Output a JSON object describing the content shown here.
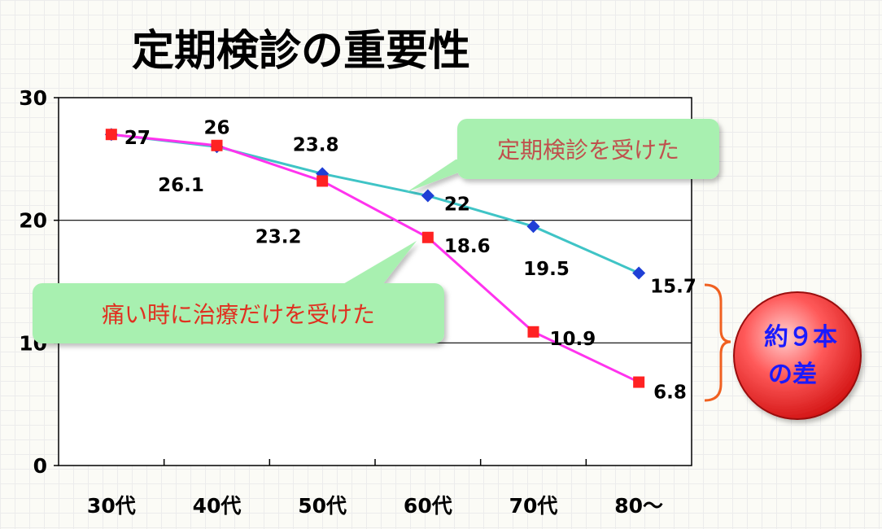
{
  "title": "定期検診の重要性",
  "chart_data": {
    "type": "line",
    "categories": [
      "30代",
      "40代",
      "50代",
      "60代",
      "70代",
      "80～"
    ],
    "ylim": [
      0,
      30
    ],
    "yticks": [
      "0",
      "10",
      "20",
      "30"
    ],
    "grid": "horizontal",
    "series": [
      {
        "name": "定期検診を受けた",
        "values": [
          27,
          26,
          23.8,
          22,
          19.5,
          15.7
        ],
        "labels": [
          "27",
          "26",
          "23.8",
          "22",
          "19.5",
          "15.7"
        ],
        "color": "#3fc4c6",
        "marker_color": "#1f3fd6",
        "marker": "diamond"
      },
      {
        "name": "痛い時に治療だけを受けた",
        "values": [
          27,
          26.1,
          23.2,
          18.6,
          10.9,
          6.8
        ],
        "labels": [
          "27",
          "26.1",
          "23.2",
          "18.6",
          "10.9",
          "6.8"
        ],
        "color": "#ff33ee",
        "marker_color": "#ff2222",
        "marker": "square"
      }
    ],
    "annotations": {
      "callout_regular": "定期検診を受けた",
      "callout_pain": "痛い時に治療だけを受けた",
      "difference_badge": [
        "約９本",
        "の差"
      ]
    },
    "colors": {
      "callout_bg": "#a8f0b0",
      "callout_regular_text": "#c0504d",
      "callout_pain_text": "#e03020",
      "brace": "#f06020",
      "badge_text": "#1a1aff"
    }
  }
}
